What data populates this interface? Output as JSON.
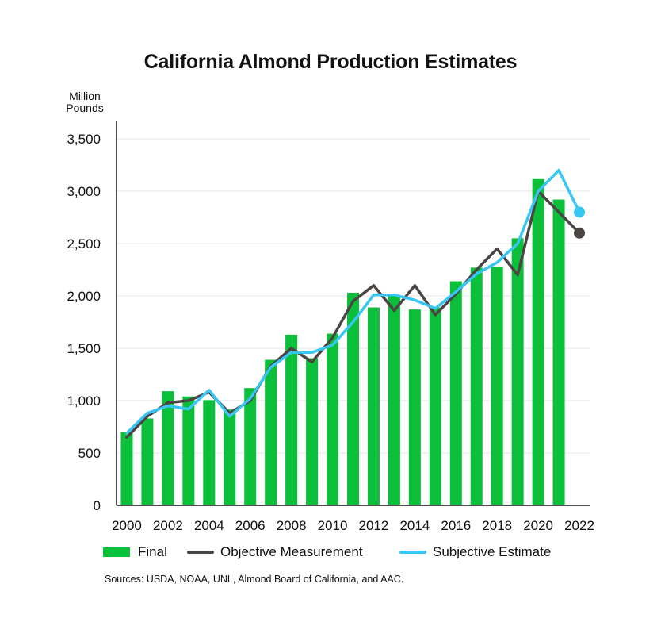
{
  "chart_data": {
    "type": "bar",
    "title": "California Almond Production Estimates",
    "ylabel": "Million Pounds",
    "xlabel": "",
    "ylim": [
      0,
      3500
    ],
    "yticks": [
      0,
      500,
      1000,
      1500,
      2000,
      2500,
      3000,
      3500
    ],
    "ytick_labels": [
      "0",
      "500",
      "1,000",
      "1,500",
      "2,000",
      "2,500",
      "3,000",
      "3,500"
    ],
    "x": [
      2000,
      2001,
      2002,
      2003,
      2004,
      2005,
      2006,
      2007,
      2008,
      2009,
      2010,
      2011,
      2012,
      2013,
      2014,
      2015,
      2016,
      2017,
      2018,
      2019,
      2020,
      2021,
      2022
    ],
    "xtick_labels": [
      "2000",
      "2002",
      "2004",
      "2006",
      "2008",
      "2010",
      "2012",
      "2014",
      "2016",
      "2018",
      "2020",
      "2022"
    ],
    "grid": "horizontal",
    "legend_position": "bottom",
    "series": [
      {
        "name": "Final",
        "kind": "bar",
        "color": "#0bbf3a",
        "values": [
          703,
          830,
          1090,
          1040,
          1005,
          915,
          1120,
          1390,
          1630,
          1405,
          1640,
          2030,
          1890,
          2010,
          1870,
          1890,
          2140,
          2270,
          2280,
          2550,
          3115,
          2920,
          null
        ]
      },
      {
        "name": "Objective Measurement",
        "kind": "line",
        "color": "#4a4443",
        "values": [
          650,
          850,
          980,
          1000,
          1080,
          880,
          1000,
          1330,
          1500,
          1370,
          1600,
          1950,
          2100,
          1860,
          2100,
          1820,
          2020,
          2250,
          2450,
          2200,
          3000,
          2800,
          2600
        ],
        "marker_last": true
      },
      {
        "name": "Subjective Estimate",
        "kind": "line",
        "color": "#38c6f4",
        "values": [
          690,
          880,
          950,
          920,
          1100,
          850,
          1020,
          1320,
          1460,
          1460,
          1530,
          1750,
          2010,
          2010,
          1960,
          1880,
          2040,
          2210,
          2320,
          2500,
          3000,
          3200,
          2800
        ],
        "marker_last": true
      }
    ],
    "source": "Sources: USDA, NOAA, UNL, Almond Board of California, and AAC."
  }
}
